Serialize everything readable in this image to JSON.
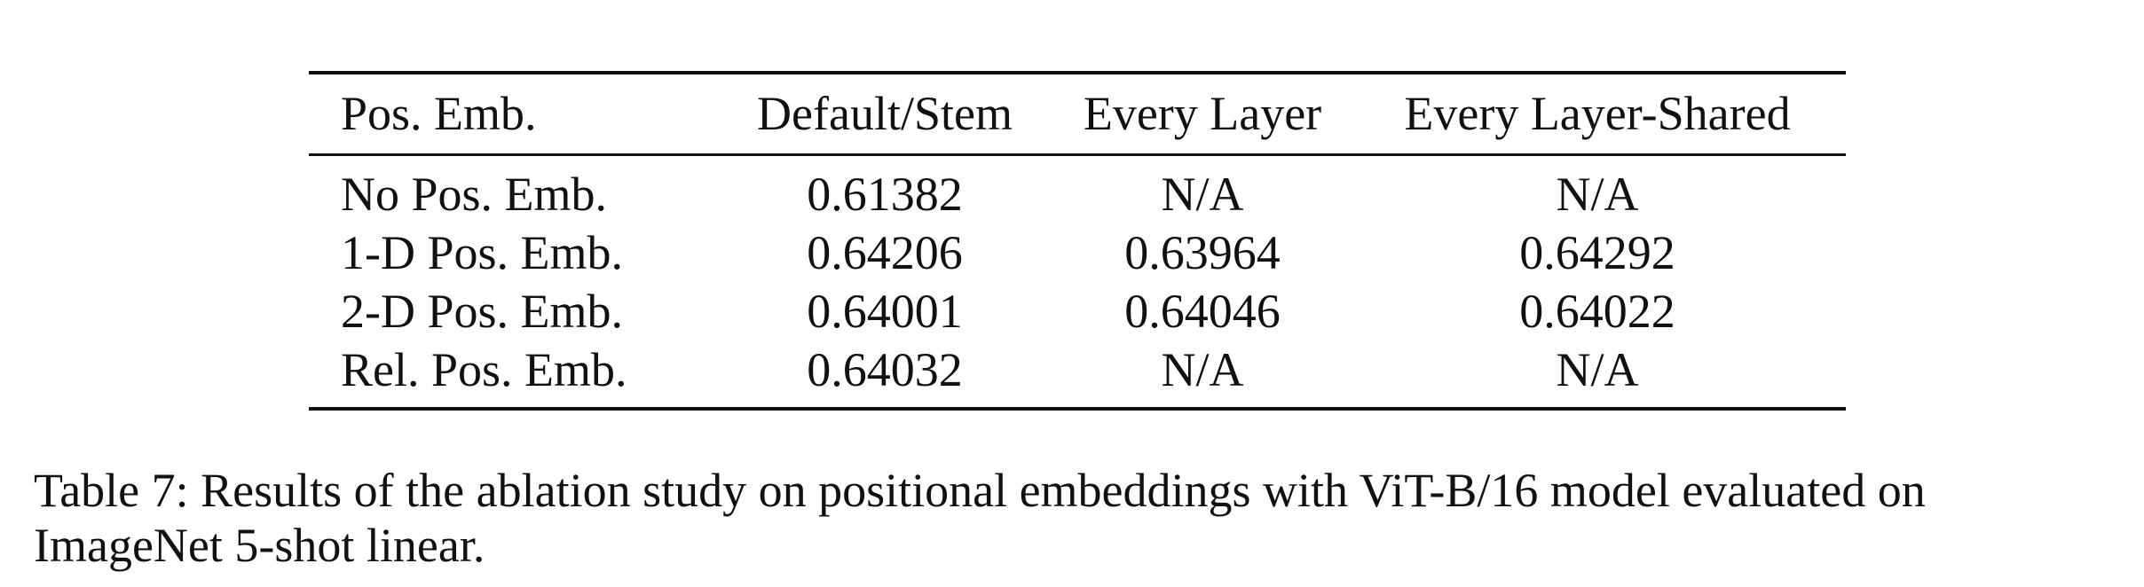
{
  "table": {
    "headers": [
      "Pos. Emb.",
      "Default/Stem",
      "Every Layer",
      "Every Layer-Shared"
    ],
    "rows": [
      [
        "No Pos. Emb.",
        "0.61382",
        "N/A",
        "N/A"
      ],
      [
        "1-D Pos. Emb.",
        "0.64206",
        "0.63964",
        "0.64292"
      ],
      [
        "2-D Pos. Emb.",
        "0.64001",
        "0.64046",
        "0.64022"
      ],
      [
        "Rel. Pos. Emb.",
        "0.64032",
        "N/A",
        "N/A"
      ]
    ]
  },
  "caption": {
    "line1": "Table 7: Results of the ablation study on positional embeddings with ViT-B/16 model evaluated on",
    "line2": "ImageNet 5-shot linear."
  }
}
